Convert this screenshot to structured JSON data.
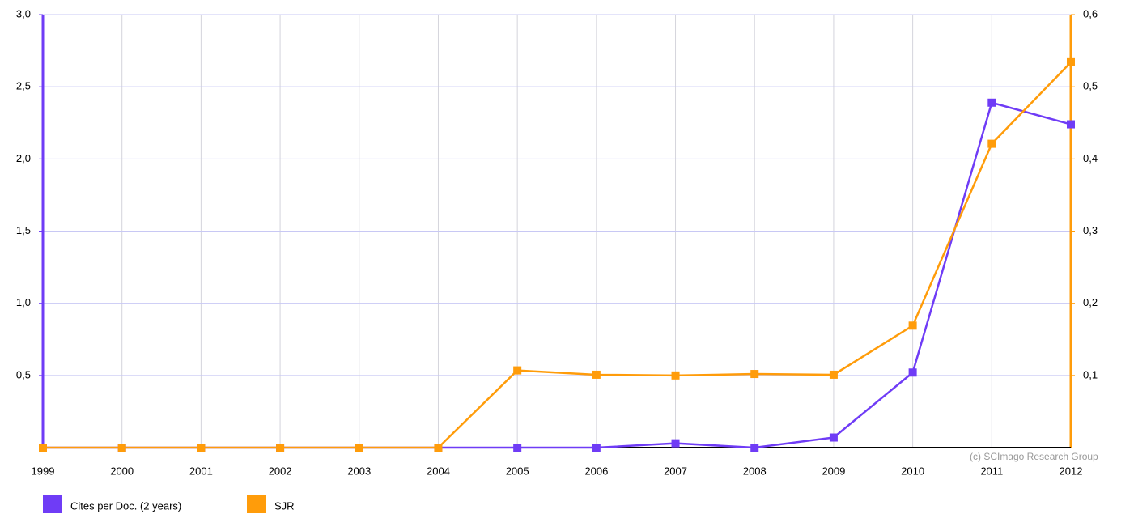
{
  "chart_data": {
    "type": "line",
    "x": [
      "1999",
      "2000",
      "2001",
      "2002",
      "2003",
      "2004",
      "2005",
      "2006",
      "2007",
      "2008",
      "2009",
      "2010",
      "2011",
      "2012"
    ],
    "series": [
      {
        "name": "Cites per Doc. (2 years)",
        "color": "#6f3cf6",
        "axis": "y",
        "values": [
          0,
          0,
          0,
          0,
          0,
          0,
          0,
          0,
          0.03,
          0,
          0.07,
          0.52,
          2.39,
          2.24
        ]
      },
      {
        "name": "SJR",
        "color": "#ff9c0a",
        "axis": "y2",
        "values": [
          0,
          0,
          0,
          0,
          0,
          0,
          0.107,
          0.101,
          0.1,
          0.102,
          0.101,
          0.169,
          0.421,
          0.534
        ]
      }
    ],
    "ylim": [
      0,
      3
    ],
    "yticks": [
      {
        "value": 0.5,
        "label": "0,5"
      },
      {
        "value": 1,
        "label": "1,0"
      },
      {
        "value": 1.5,
        "label": "1,5"
      },
      {
        "value": 2,
        "label": "2,0"
      },
      {
        "value": 2.5,
        "label": "2,5"
      },
      {
        "value": 3,
        "label": "3,0"
      }
    ],
    "y2lim": [
      0,
      0.6
    ],
    "y2ticks": [
      {
        "value": 0.1,
        "label": "0,1"
      },
      {
        "value": 0.2,
        "label": "0,2"
      },
      {
        "value": 0.3,
        "label": "0,3"
      },
      {
        "value": 0.4,
        "label": "0,4"
      },
      {
        "value": 0.5,
        "label": "0,5"
      },
      {
        "value": 0.6,
        "label": "0,6"
      }
    ],
    "grid": true,
    "legend": "bottom-left",
    "annotation": "(c) SCImago Research Group"
  }
}
